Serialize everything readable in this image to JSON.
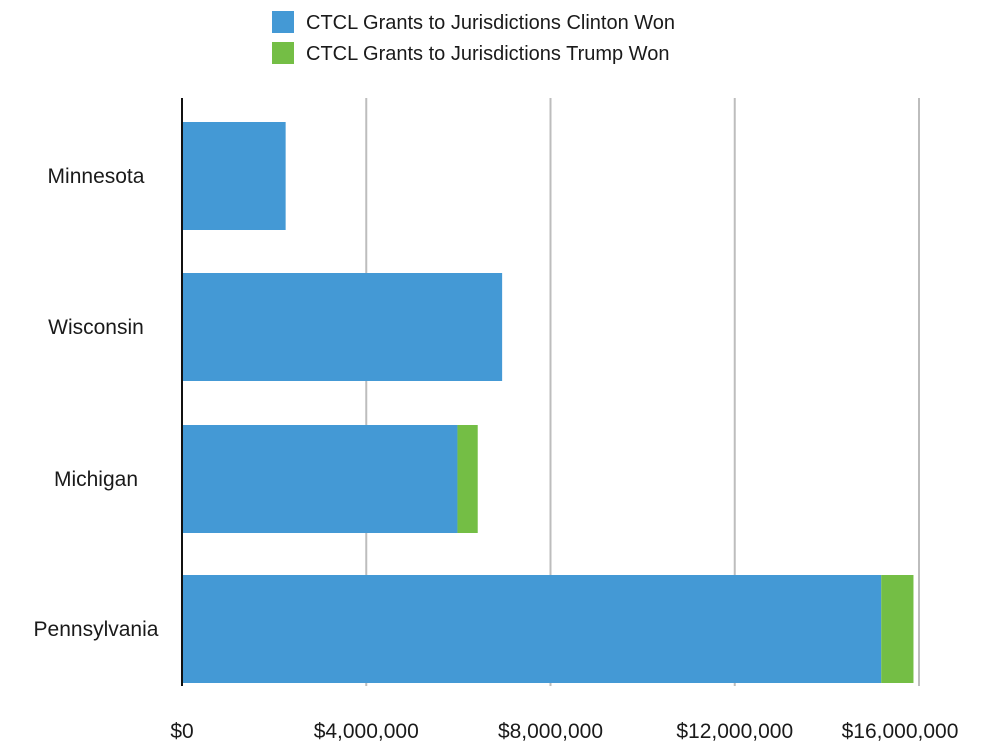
{
  "chart_data": {
    "type": "bar",
    "orientation": "horizontal",
    "stacked": true,
    "categories": [
      "Minnesota",
      "Wisconsin",
      "Michigan",
      "Pennsylvania"
    ],
    "series": [
      {
        "name": "CTCL Grants to Jurisdictions Clinton Won",
        "color": "#4499d5",
        "values": [
          2250000,
          6950000,
          5980000,
          15180000
        ]
      },
      {
        "name": "CTCL Grants to Jurisdictions Trump Won",
        "color": "#74be45",
        "values": [
          0,
          0,
          440000,
          700000
        ]
      }
    ],
    "x_ticks": [
      "$0",
      "$4,000,000",
      "$8,000,000",
      "$12,000,000",
      "$16,000,000"
    ],
    "xlim": [
      0,
      16000000
    ],
    "grid": true,
    "legend_position": "top-center",
    "title": "",
    "xlabel": "",
    "ylabel": ""
  }
}
